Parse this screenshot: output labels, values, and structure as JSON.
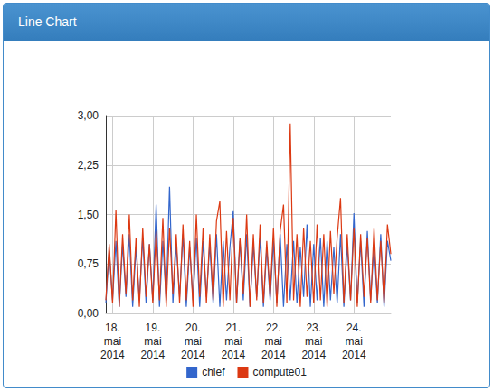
{
  "chart_data": {
    "type": "line",
    "title": "Line Chart",
    "categories": [
      null,
      null,
      "18. mai 2014",
      null,
      null,
      null,
      null,
      null,
      null,
      null,
      null,
      null,
      null,
      null,
      "19. mai 2014",
      null,
      null,
      null,
      null,
      null,
      null,
      null,
      null,
      null,
      null,
      null,
      "20. mai 2014",
      null,
      null,
      null,
      null,
      null,
      null,
      null,
      null,
      null,
      null,
      null,
      "21. mai 2014",
      null,
      null,
      null,
      null,
      null,
      null,
      null,
      null,
      null,
      null,
      null,
      "22. mai 2014",
      null,
      null,
      null,
      null,
      null,
      null,
      null,
      null,
      null,
      null,
      null,
      "23. mai 2014",
      null,
      null,
      null,
      null,
      null,
      null,
      null,
      null,
      null,
      null,
      null,
      "24. mai 2014",
      null,
      null,
      null,
      null,
      null,
      null,
      null,
      null,
      null,
      null,
      null
    ],
    "series": [
      {
        "name": "chief",
        "color": "#3366cc",
        "values": [
          0.15,
          0.95,
          0.2,
          1.1,
          0.1,
          1.05,
          0.25,
          1.2,
          0.1,
          1.0,
          0.2,
          1.15,
          0.15,
          1.05,
          0.2,
          1.65,
          0.1,
          1.1,
          0.2,
          1.92,
          0.15,
          1.05,
          0.25,
          1.2,
          0.1,
          1.0,
          0.2,
          1.15,
          0.1,
          1.1,
          0.25,
          1.05,
          0.15,
          1.2,
          0.1,
          1.1,
          0.2,
          1.0,
          1.55,
          0.15,
          1.1,
          0.2,
          1.2,
          0.1,
          1.05,
          0.25,
          1.15,
          0.1,
          1.0,
          0.2,
          1.1,
          0.15,
          1.2,
          0.1,
          1.05,
          0.2,
          1.1,
          0.15,
          1.0,
          0.25,
          1.35,
          0.1,
          1.05,
          0.2,
          1.15,
          0.1,
          1.1,
          0.2,
          1.0,
          0.15,
          1.2,
          0.1,
          1.05,
          0.2,
          1.52,
          0.15,
          1.1,
          0.1,
          1.25,
          0.2,
          1.05,
          0.15,
          1.2,
          0.1,
          1.1,
          0.8
        ]
      },
      {
        "name": "compute01",
        "color": "#dc3912",
        "values": [
          0.2,
          1.05,
          0.15,
          1.57,
          0.1,
          1.2,
          0.3,
          1.5,
          0.2,
          1.15,
          0.1,
          1.3,
          0.25,
          1.05,
          0.15,
          1.25,
          0.2,
          1.45,
          0.1,
          1.3,
          0.3,
          1.2,
          0.15,
          1.35,
          0.2,
          1.1,
          0.1,
          1.5,
          0.25,
          1.3,
          0.15,
          1.2,
          0.2,
          1.4,
          1.7,
          0.1,
          1.25,
          0.2,
          1.45,
          0.15,
          1.15,
          0.3,
          1.5,
          0.1,
          1.2,
          0.2,
          1.35,
          0.15,
          1.1,
          0.25,
          1.3,
          0.1,
          1.25,
          1.65,
          0.15,
          2.88,
          0.2,
          1.2,
          0.1,
          1.3,
          0.25,
          1.1,
          0.15,
          1.35,
          0.2,
          1.2,
          0.1,
          1.25,
          0.3,
          1.15,
          1.75,
          0.15,
          1.2,
          0.2,
          1.3,
          0.1,
          1.2,
          0.25,
          1.15,
          0.15,
          1.3,
          0.2,
          1.1,
          0.15,
          1.35,
          0.9
        ]
      }
    ],
    "ylim": [
      0,
      3
    ],
    "yticks": [
      {
        "value": 0,
        "label": "0,00"
      },
      {
        "value": 0.75,
        "label": "0,75"
      },
      {
        "value": 1.5,
        "label": "1,50"
      },
      {
        "value": 2.25,
        "label": "2,25"
      },
      {
        "value": 3,
        "label": "3,00"
      }
    ],
    "grid": true,
    "legend": "bottom"
  }
}
